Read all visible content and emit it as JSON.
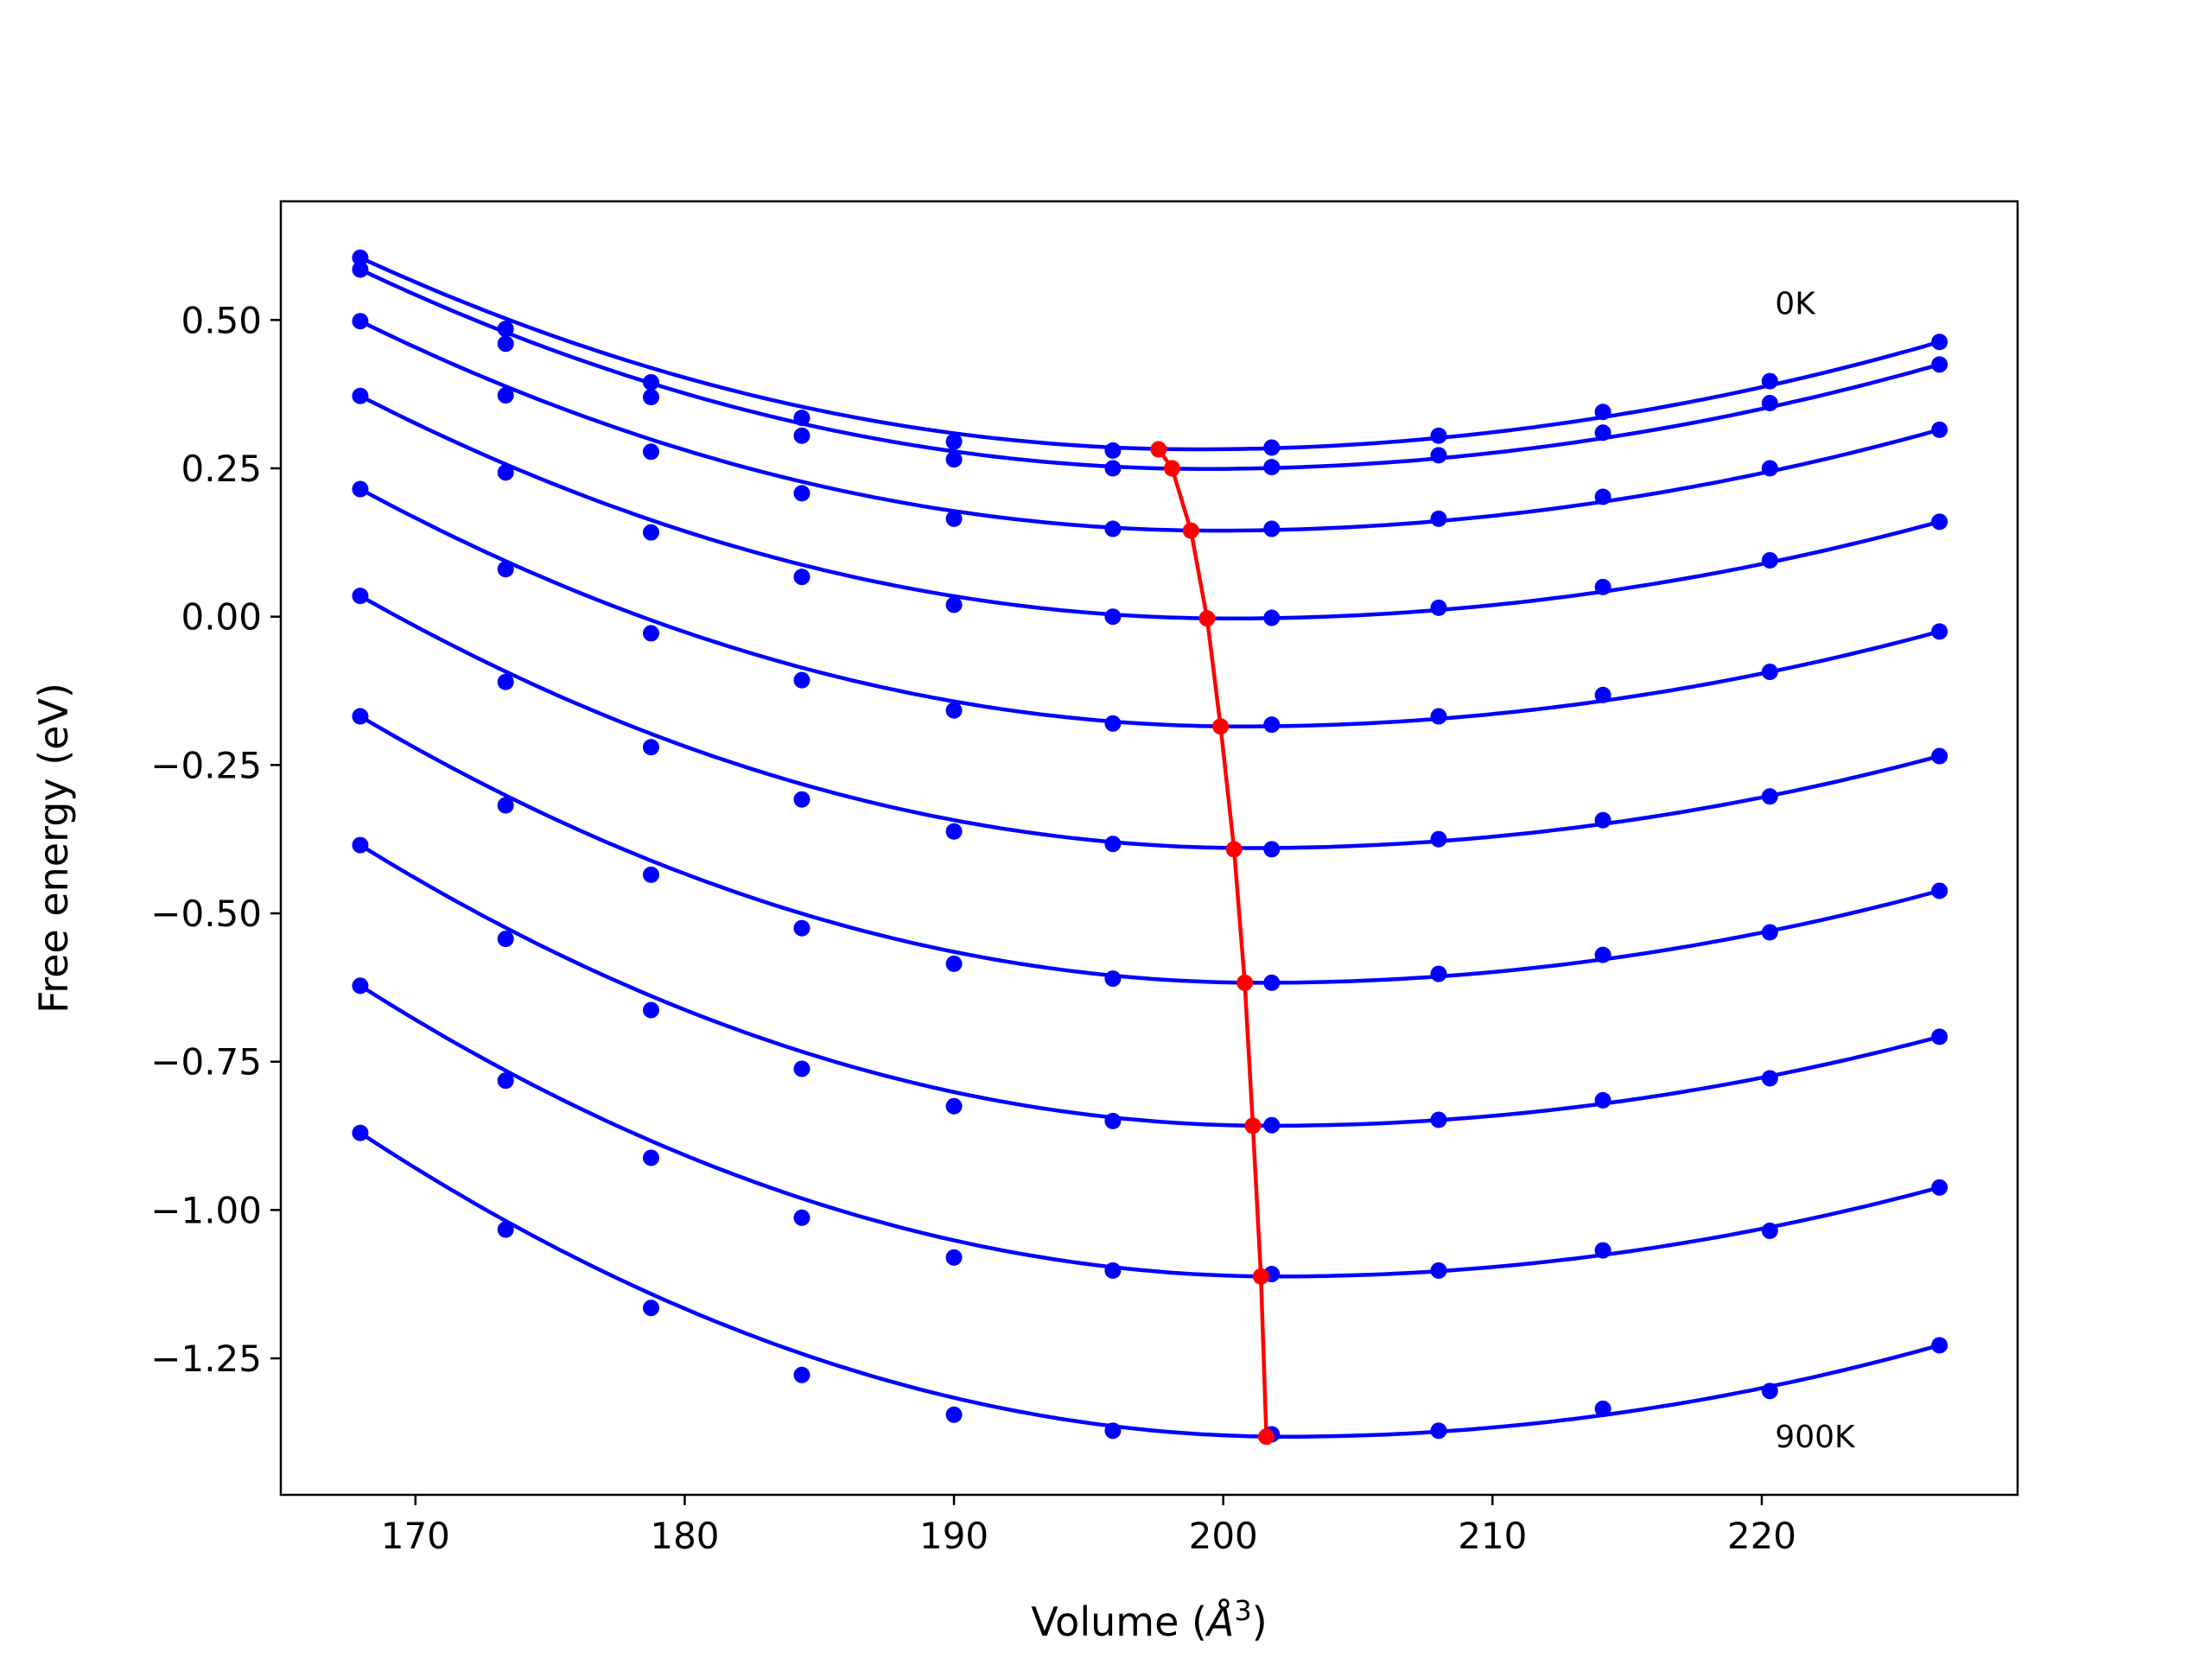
{
  "chart_data": {
    "type": "line",
    "xlabel": "Volume (",
    "xlabel_unit_base": "Å",
    "xlabel_unit_exp": "3",
    "xlabel_close": ")",
    "ylabel": "Free energy (eV)",
    "xlim": [
      165,
      229.5
    ],
    "ylim": [
      -1.48,
      0.7
    ],
    "x_ticks": [
      170,
      180,
      190,
      200,
      210,
      220
    ],
    "y_ticks": [
      0.5,
      0.25,
      0.0,
      -0.25,
      -0.5,
      -0.75,
      -1.0,
      -1.25
    ],
    "y_tick_labels": [
      "0.50",
      "0.25",
      "0.00",
      "−0.25",
      "−0.50",
      "−0.75",
      "−1.00",
      "−1.25"
    ],
    "grid": false,
    "volumes": [
      167.95,
      173.35,
      178.75,
      184.35,
      190.0,
      195.9,
      201.8,
      208.0,
      214.1,
      220.3,
      226.6
    ],
    "series": [
      {
        "values": [
          0.605,
          0.485,
          0.395,
          0.335,
          0.295,
          0.28,
          0.285,
          0.305,
          0.345,
          0.397,
          0.463
        ],
        "curve_min_x": 199.0,
        "curve_min_y": 0.282
      },
      {
        "values": [
          0.585,
          0.46,
          0.37,
          0.305,
          0.265,
          0.25,
          0.252,
          0.272,
          0.31,
          0.36,
          0.425
        ],
        "curve_min_x": 199.3,
        "curve_min_y": 0.249
      },
      {
        "values": [
          0.498,
          0.373,
          0.278,
          0.208,
          0.165,
          0.148,
          0.148,
          0.165,
          0.202,
          0.25,
          0.315
        ],
        "curve_min_x": 199.7,
        "curve_min_y": 0.145
      },
      {
        "values": [
          0.372,
          0.243,
          0.142,
          0.067,
          0.02,
          0.0,
          -0.002,
          0.015,
          0.05,
          0.095,
          0.16
        ],
        "curve_min_x": 200.2,
        "curve_min_y": -0.003
      },
      {
        "values": [
          0.215,
          0.08,
          -0.028,
          -0.107,
          -0.158,
          -0.18,
          -0.182,
          -0.168,
          -0.132,
          -0.093,
          -0.025
        ],
        "curve_min_x": 200.6,
        "curve_min_y": -0.185
      },
      {
        "values": [
          0.035,
          -0.11,
          -0.22,
          -0.308,
          -0.362,
          -0.383,
          -0.392,
          -0.375,
          -0.343,
          -0.303,
          -0.235
        ],
        "curve_min_x": 201.0,
        "curve_min_y": -0.39
      },
      {
        "values": [
          -0.168,
          -0.318,
          -0.435,
          -0.525,
          -0.585,
          -0.61,
          -0.617,
          -0.602,
          -0.57,
          -0.532,
          -0.462
        ],
        "curve_min_x": 201.4,
        "curve_min_y": -0.617
      },
      {
        "values": [
          -0.385,
          -0.543,
          -0.663,
          -0.762,
          -0.825,
          -0.85,
          -0.857,
          -0.848,
          -0.815,
          -0.778,
          -0.708
        ],
        "curve_min_x": 201.7,
        "curve_min_y": -0.858
      },
      {
        "values": [
          -0.622,
          -0.782,
          -0.912,
          -1.013,
          -1.08,
          -1.102,
          -1.108,
          -1.102,
          -1.068,
          -1.035,
          -0.962
        ],
        "curve_min_x": 202.0,
        "curve_min_y": -1.112
      },
      {
        "values": [
          -0.87,
          -1.033,
          -1.165,
          -1.278,
          -1.345,
          -1.372,
          -1.378,
          -1.372,
          -1.335,
          -1.305,
          -1.228
        ],
        "curve_min_x": 202.3,
        "curve_min_y": -1.382
      }
    ],
    "minima": {
      "x": [
        197.6,
        198.1,
        198.8,
        199.4,
        199.9,
        200.4,
        200.8,
        201.1,
        201.4,
        201.6
      ],
      "y": [
        0.282,
        0.25,
        0.145,
        -0.003,
        -0.185,
        -0.392,
        -0.617,
        -0.858,
        -1.112,
        -1.382
      ]
    },
    "annotations": [
      {
        "text": "0K",
        "x": 220.3,
        "y": 0.51
      },
      {
        "text": "900K",
        "x": 220.3,
        "y": -1.4
      }
    ],
    "curve_color": "#0000ff",
    "minima_color": "#ff0000"
  }
}
